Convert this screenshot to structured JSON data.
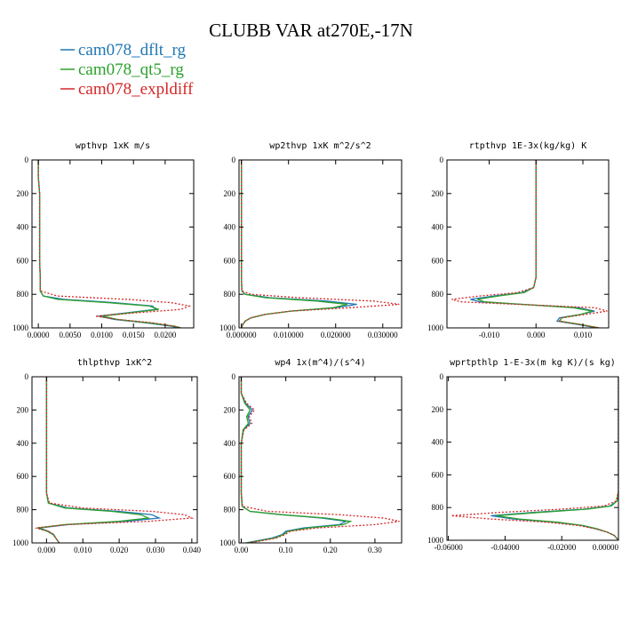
{
  "figure": {
    "title": "CLUBB VAR at270E,-17N",
    "legend": [
      {
        "name": "cam078_dflt_rg",
        "color": "#1f77b4"
      },
      {
        "name": "cam078_qt5_rg",
        "color": "#2ca02c"
      },
      {
        "name": "cam078_expldiff",
        "color": "#d62728"
      }
    ]
  },
  "chart_data": [
    {
      "type": "line",
      "title": "wpthvp   1xK m/s",
      "ylim": [
        1000,
        0
      ],
      "y_ticks": [
        0,
        200,
        400,
        600,
        800,
        1000
      ],
      "xlim": [
        -0.001,
        0.0245
      ],
      "x_ticks": [
        0,
        0.005,
        0.01,
        0.015,
        0.02
      ],
      "x_tick_labels": [
        "0.0000",
        "0.0050",
        "0.0100",
        "0.0150",
        "0.0200"
      ],
      "y": [
        0,
        100,
        200,
        300,
        400,
        500,
        600,
        700,
        780,
        810,
        830,
        850,
        870,
        890,
        910,
        930,
        950,
        970,
        990,
        1000
      ],
      "series": [
        {
          "name": "cam078_dflt_rg",
          "values": [
            0,
            0,
            0.0002,
            0.0002,
            0.0002,
            0.0002,
            0.0002,
            0.0003,
            0.0003,
            0.0008,
            0.004,
            0.012,
            0.018,
            0.0185,
            0.014,
            0.0095,
            0.012,
            0.017,
            0.021,
            0.022
          ]
        },
        {
          "name": "cam078_qt5_rg",
          "values": [
            0,
            0,
            0.0002,
            0.0002,
            0.0002,
            0.0002,
            0.0002,
            0.0003,
            0.0003,
            0.0008,
            0.003,
            0.011,
            0.0175,
            0.019,
            0.0145,
            0.01,
            0.0125,
            0.0175,
            0.0215,
            0.0225
          ]
        },
        {
          "name": "cam078_expldiff",
          "values": [
            0,
            0,
            0.0002,
            0.0002,
            0.0002,
            0.0002,
            0.0002,
            0.0003,
            0.0003,
            0.003,
            0.014,
            0.021,
            0.0238,
            0.0225,
            0.0155,
            0.009,
            0.0125,
            0.018,
            0.0215,
            0.0225
          ]
        }
      ]
    },
    {
      "type": "line",
      "title": "wp2thvp   1xK m^2/s^2",
      "ylim": [
        1000,
        0
      ],
      "y_ticks": [
        0,
        200,
        400,
        600,
        800,
        1000
      ],
      "xlim": [
        -0.0005,
        0.034
      ],
      "x_ticks": [
        0,
        0.01,
        0.02,
        0.03
      ],
      "x_tick_labels": [
        "0.000000",
        "0.010000",
        "0.020000",
        "0.030000"
      ],
      "y": [
        0,
        100,
        200,
        300,
        400,
        500,
        600,
        700,
        780,
        800,
        820,
        840,
        860,
        880,
        900,
        920,
        940,
        960,
        980,
        1000
      ],
      "series": [
        {
          "name": "cam078_dflt_rg",
          "values": [
            0,
            0,
            0,
            0,
            0,
            0,
            0,
            0,
            0.0001,
            0.0008,
            0.006,
            0.018,
            0.0245,
            0.02,
            0.0105,
            0.005,
            0.002,
            0.0008,
            0.0003,
            0
          ]
        },
        {
          "name": "cam078_qt5_rg",
          "values": [
            0,
            0,
            0,
            0,
            0,
            0,
            0,
            0,
            0.0001,
            0.0007,
            0.005,
            0.016,
            0.0225,
            0.0195,
            0.0105,
            0.005,
            0.002,
            0.0008,
            0.0003,
            0
          ]
        },
        {
          "name": "cam078_expldiff",
          "values": [
            0,
            0,
            0,
            0,
            0,
            0,
            0,
            0,
            0.0001,
            0.002,
            0.012,
            0.028,
            0.0335,
            0.023,
            0.0105,
            0.005,
            0.002,
            0.0008,
            0.0003,
            0
          ]
        }
      ]
    },
    {
      "type": "line",
      "title": "rtpthvp   1E-3x(kg/kg) K",
      "ylim": [
        1000,
        0
      ],
      "y_ticks": [
        0,
        200,
        400,
        600,
        800,
        1000
      ],
      "xlim": [
        -0.019,
        0.0155
      ],
      "x_ticks": [
        -0.01,
        0,
        0.01
      ],
      "x_tick_labels": [
        "-0.010",
        "0.000",
        "0.010"
      ],
      "y": [
        0,
        200,
        400,
        600,
        700,
        760,
        790,
        810,
        830,
        845,
        860,
        880,
        900,
        920,
        940,
        960,
        980,
        1000
      ],
      "series": [
        {
          "name": "cam078_dflt_rg",
          "values": [
            0,
            0,
            0,
            0,
            0,
            -0.0005,
            -0.003,
            -0.009,
            -0.014,
            -0.012,
            -0.003,
            0.009,
            0.0125,
            0.0095,
            0.005,
            0.0045,
            0.009,
            0.013
          ]
        },
        {
          "name": "cam078_qt5_rg",
          "values": [
            0,
            0,
            0,
            0,
            0,
            -0.0005,
            -0.0025,
            -0.008,
            -0.0125,
            -0.011,
            -0.003,
            0.008,
            0.012,
            0.0095,
            0.0055,
            0.005,
            0.0095,
            0.0135
          ]
        },
        {
          "name": "cam078_expldiff",
          "values": [
            0,
            0,
            0,
            0,
            0,
            -0.0005,
            -0.004,
            -0.012,
            -0.018,
            -0.016,
            -0.004,
            0.0125,
            0.0152,
            0.0105,
            0.0055,
            0.005,
            0.0095,
            0.0135
          ]
        }
      ]
    },
    {
      "type": "line",
      "title": "thlpthvp   1xK^2",
      "ylim": [
        1000,
        0
      ],
      "y_ticks": [
        0,
        200,
        400,
        600,
        800,
        1000
      ],
      "xlim": [
        -0.004,
        0.0415
      ],
      "x_ticks": [
        0,
        0.01,
        0.02,
        0.03,
        0.04
      ],
      "x_tick_labels": [
        "0.000",
        "0.010",
        "0.020",
        "0.030",
        "0.040"
      ],
      "y": [
        0,
        100,
        200,
        300,
        400,
        500,
        600,
        700,
        760,
        790,
        810,
        830,
        850,
        870,
        890,
        910,
        930,
        950,
        970,
        990,
        1000
      ],
      "series": [
        {
          "name": "cam078_dflt_rg",
          "values": [
            0,
            0,
            0,
            0,
            0,
            0,
            0,
            0,
            0.0005,
            0.006,
            0.02,
            0.029,
            0.031,
            0.022,
            0.006,
            -0.002,
            0.0005,
            0.002,
            0.0025,
            0.0032,
            0.0035
          ]
        },
        {
          "name": "cam078_qt5_rg",
          "values": [
            0,
            0,
            0,
            0,
            0,
            0,
            0,
            0,
            0.0005,
            0.005,
            0.018,
            0.026,
            0.028,
            0.02,
            0.005,
            -0.0025,
            0.0002,
            0.0018,
            0.0025,
            0.0032,
            0.0035
          ]
        },
        {
          "name": "cam078_expldiff",
          "values": [
            0,
            0,
            0,
            0,
            0,
            0,
            0,
            0,
            0.0008,
            0.01,
            0.029,
            0.038,
            0.04,
            0.028,
            0.0055,
            -0.003,
            0.0005,
            0.002,
            0.0025,
            0.0032,
            0.0035
          ]
        }
      ]
    },
    {
      "type": "line",
      "title": "wp4   1x(m^4)/(s^4)",
      "ylim": [
        1000,
        0
      ],
      "y_ticks": [
        0,
        200,
        400,
        600,
        800,
        1000
      ],
      "xlim": [
        -0.005,
        0.36
      ],
      "x_ticks": [
        0,
        0.1,
        0.2,
        0.3
      ],
      "x_tick_labels": [
        "0.00",
        "0.10",
        "0.20",
        "0.30"
      ],
      "y": [
        0,
        100,
        160,
        200,
        240,
        280,
        320,
        400,
        500,
        600,
        700,
        780,
        810,
        830,
        850,
        870,
        890,
        910,
        930,
        950,
        970,
        990,
        1000
      ],
      "series": [
        {
          "name": "cam078_dflt_rg",
          "values": [
            0,
            0,
            0.01,
            0.025,
            0.015,
            0.02,
            0.005,
            0,
            0,
            0,
            0,
            0.002,
            0.02,
            0.09,
            0.18,
            0.235,
            0.22,
            0.14,
            0.1,
            0.092,
            0.07,
            0.03,
            0.01
          ]
        },
        {
          "name": "cam078_qt5_rg",
          "values": [
            0,
            0,
            0.008,
            0.02,
            0.012,
            0.016,
            0.004,
            0,
            0,
            0,
            0,
            0.002,
            0.02,
            0.09,
            0.19,
            0.245,
            0.23,
            0.15,
            0.105,
            0.095,
            0.075,
            0.035,
            0.012
          ]
        },
        {
          "name": "cam078_expldiff",
          "values": [
            0,
            0,
            0.012,
            0.03,
            0.018,
            0.024,
            0.006,
            0,
            0,
            0,
            0,
            0.003,
            0.06,
            0.22,
            0.32,
            0.355,
            0.3,
            0.17,
            0.11,
            0.098,
            0.08,
            0.04,
            0.015
          ]
        }
      ]
    },
    {
      "type": "line",
      "title": "wprtpthlp   1-E-3x(m kg K)/(s kg)",
      "ylim": [
        1000,
        0
      ],
      "y_ticks": [
        0,
        200,
        400,
        600,
        800,
        1000
      ],
      "xlim": [
        -0.0605,
        0
      ],
      "x_ticks": [
        -0.06,
        -0.04,
        -0.02,
        0
      ],
      "x_tick_labels": [
        "-0.06000",
        "-0.04000",
        "-0.02000",
        "0.00000"
      ],
      "y": [
        0,
        200,
        400,
        600,
        700,
        760,
        790,
        810,
        830,
        850,
        870,
        890,
        910,
        930,
        950,
        970,
        990,
        1000
      ],
      "series": [
        {
          "name": "cam078_dflt_rg",
          "values": [
            0,
            0,
            0,
            0,
            0,
            -0.0005,
            -0.003,
            -0.012,
            -0.03,
            -0.045,
            -0.037,
            -0.022,
            -0.013,
            -0.008,
            -0.004,
            -0.0015,
            -0.0005,
            0
          ]
        },
        {
          "name": "cam078_qt5_rg",
          "values": [
            0,
            0,
            0,
            0,
            0,
            -0.0005,
            -0.0025,
            -0.011,
            -0.028,
            -0.043,
            -0.035,
            -0.021,
            -0.0125,
            -0.0075,
            -0.004,
            -0.0015,
            -0.0005,
            0
          ]
        },
        {
          "name": "cam078_expldiff",
          "values": [
            0,
            0,
            0,
            0,
            0,
            -0.0008,
            -0.005,
            -0.02,
            -0.042,
            -0.059,
            -0.045,
            -0.025,
            -0.014,
            -0.008,
            -0.004,
            -0.0015,
            -0.0005,
            0
          ]
        }
      ]
    }
  ]
}
